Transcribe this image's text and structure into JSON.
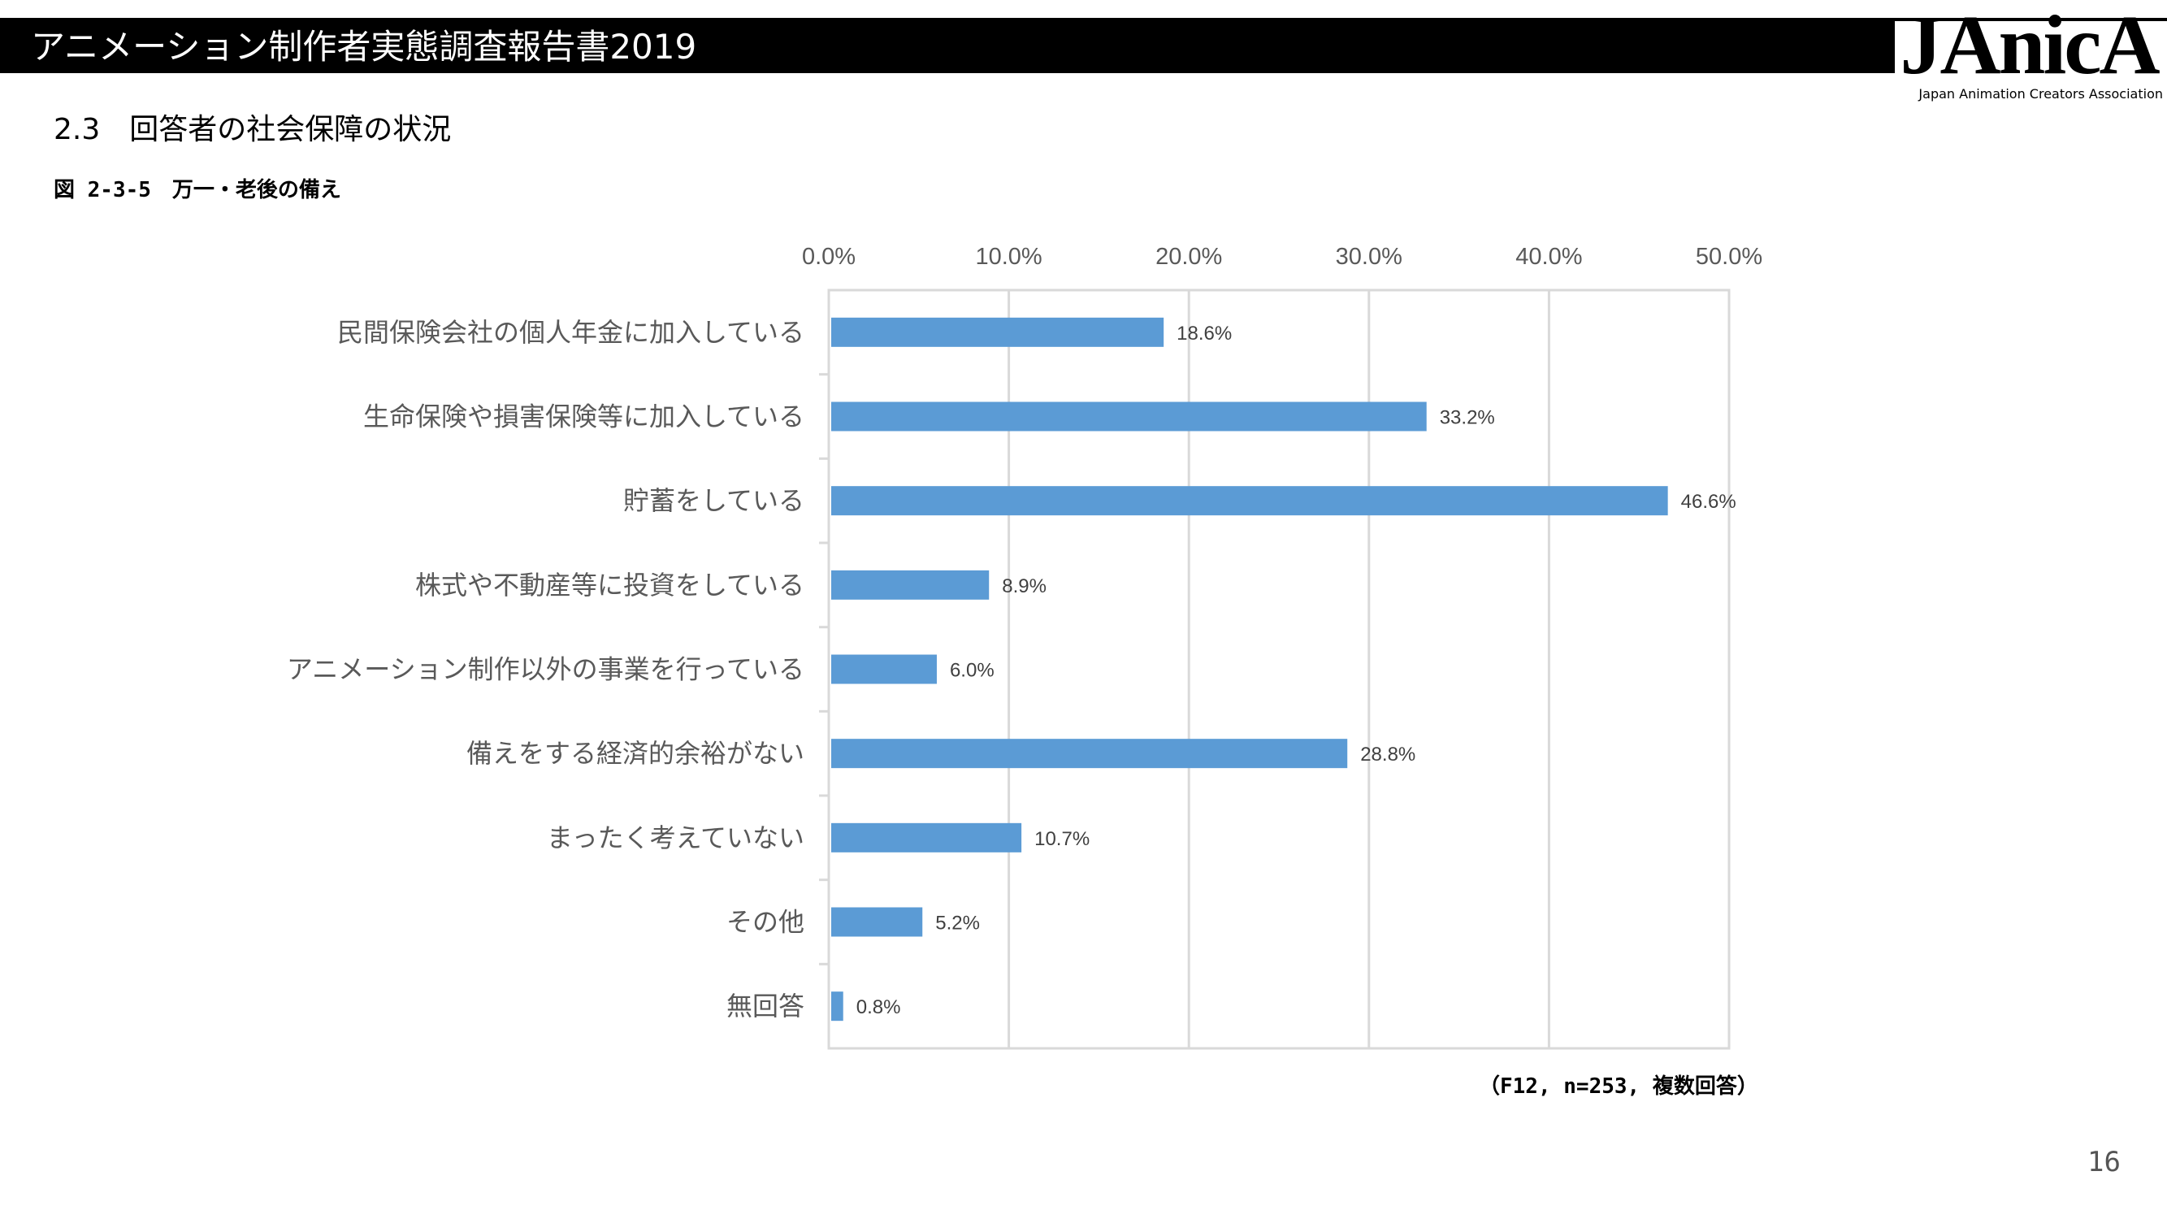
{
  "header": {
    "title": "アニメーション制作者実態調査報告書2019",
    "logo_text": "JAnicA",
    "logo_subtitle": "Japan Animation Creators Association"
  },
  "section": {
    "title": "2.3　回答者の社会保障の状況",
    "figure_caption": "図 2-3-5　万一・老後の備え"
  },
  "note": "（F12, n=253, 複数回答）",
  "page_number": "16",
  "colors": {
    "bar": "#5b9bd5",
    "grid": "#d9d9d9",
    "header_bg": "#000000"
  },
  "chart_data": {
    "type": "bar",
    "orientation": "horizontal",
    "categories": [
      "民間保険会社の個人年金に加入している",
      "生命保険や損害保険等に加入している",
      "貯蓄をしている",
      "株式や不動産等に投資をしている",
      "アニメーション制作以外の事業を行っている",
      "備えをする経済的余裕がない",
      "まったく考えていない",
      "その他",
      "無回答"
    ],
    "values": [
      18.6,
      33.2,
      46.6,
      8.9,
      6.0,
      28.8,
      10.7,
      5.2,
      0.8
    ],
    "value_labels": [
      "18.6%",
      "33.2%",
      "46.6%",
      "8.9%",
      "6.0%",
      "28.8%",
      "10.7%",
      "5.2%",
      "0.8%"
    ],
    "xlim": [
      0,
      50
    ],
    "x_ticks": [
      0,
      10,
      20,
      30,
      40,
      50
    ],
    "x_tick_labels": [
      "0.0%",
      "10.0%",
      "20.0%",
      "30.0%",
      "40.0%",
      "50.0%"
    ],
    "axis_position": "top",
    "grid": true,
    "legend": false
  }
}
